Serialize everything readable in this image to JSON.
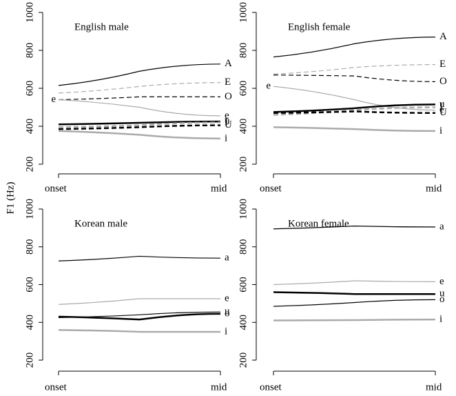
{
  "ylabel": "F1 (Hz)",
  "chart_data": [
    {
      "type": "line",
      "title": "English male",
      "categories": [
        "onset",
        null,
        "mid"
      ],
      "ylim": [
        200,
        1000
      ],
      "yticks": [
        200,
        400,
        600,
        800,
        1000
      ],
      "series": [
        {
          "name": "A",
          "color": "#000000",
          "width": 1.2,
          "dash": false,
          "values": [
            615,
            690,
            728
          ]
        },
        {
          "name": "E",
          "color": "#aaaaaa",
          "width": 1.2,
          "dash": true,
          "values": [
            575,
            610,
            630
          ]
        },
        {
          "name": "O",
          "color": "#000000",
          "width": 1.2,
          "dash": true,
          "values": [
            540,
            555,
            555
          ]
        },
        {
          "name": "e",
          "color": "#aaaaaa",
          "width": 1.2,
          "dash": false,
          "left_label": true,
          "values": [
            540,
            500,
            455
          ]
        },
        {
          "name": "u",
          "color": "#000000",
          "width": 2.5,
          "dash": false,
          "values": [
            410,
            418,
            425
          ]
        },
        {
          "name": "I",
          "color": "#aaaaaa",
          "width": 2.5,
          "dash": true,
          "values": [
            395,
            405,
            420
          ]
        },
        {
          "name": "U",
          "color": "#000000",
          "width": 2.5,
          "dash": true,
          "values": [
            385,
            395,
            405
          ]
        },
        {
          "name": "i",
          "color": "#aaaaaa",
          "width": 2.5,
          "dash": false,
          "values": [
            375,
            355,
            335
          ]
        }
      ]
    },
    {
      "type": "line",
      "title": "English female",
      "categories": [
        "onset",
        null,
        "mid"
      ],
      "ylim": [
        200,
        1000
      ],
      "yticks": [
        200,
        400,
        600,
        800,
        1000
      ],
      "series": [
        {
          "name": "A",
          "color": "#000000",
          "width": 1.2,
          "dash": false,
          "values": [
            765,
            835,
            870
          ]
        },
        {
          "name": "E",
          "color": "#aaaaaa",
          "width": 1.2,
          "dash": true,
          "values": [
            675,
            710,
            725
          ]
        },
        {
          "name": "O",
          "color": "#000000",
          "width": 1.2,
          "dash": true,
          "values": [
            670,
            665,
            635
          ]
        },
        {
          "name": "e",
          "color": "#aaaaaa",
          "width": 1.2,
          "dash": false,
          "left_label": true,
          "values": [
            610,
            540,
            485
          ]
        },
        {
          "name": "u",
          "color": "#000000",
          "width": 2.5,
          "dash": false,
          "values": [
            475,
            495,
            515
          ]
        },
        {
          "name": "I",
          "color": "#aaaaaa",
          "width": 2.5,
          "dash": true,
          "values": [
            460,
            485,
            500
          ]
        },
        {
          "name": "U",
          "color": "#000000",
          "width": 2.5,
          "dash": true,
          "values": [
            470,
            478,
            470
          ]
        },
        {
          "name": "i",
          "color": "#aaaaaa",
          "width": 2.5,
          "dash": false,
          "values": [
            395,
            385,
            375
          ]
        }
      ]
    },
    {
      "type": "line",
      "title": "Korean male",
      "categories": [
        "onset",
        null,
        "mid"
      ],
      "ylim": [
        200,
        1000
      ],
      "yticks": [
        200,
        400,
        600,
        800,
        1000
      ],
      "series": [
        {
          "name": "a",
          "color": "#000000",
          "width": 1.2,
          "dash": false,
          "values": [
            725,
            750,
            740
          ]
        },
        {
          "name": "e",
          "color": "#aaaaaa",
          "width": 1.2,
          "dash": false,
          "values": [
            495,
            525,
            525
          ]
        },
        {
          "name": "u",
          "color": "#000000",
          "width": 1.2,
          "dash": false,
          "values": [
            425,
            440,
            455
          ]
        },
        {
          "name": "o",
          "color": "#000000",
          "width": 2.5,
          "dash": false,
          "values": [
            430,
            415,
            445
          ]
        },
        {
          "name": "i",
          "color": "#aaaaaa",
          "width": 2.5,
          "dash": false,
          "values": [
            360,
            350,
            350
          ]
        }
      ]
    },
    {
      "type": "line",
      "title": "Korean female",
      "categories": [
        "onset",
        null,
        "mid"
      ],
      "ylim": [
        200,
        1000
      ],
      "yticks": [
        200,
        400,
        600,
        800,
        1000
      ],
      "series": [
        {
          "name": "a",
          "color": "#000000",
          "width": 1.2,
          "dash": false,
          "values": [
            895,
            910,
            905
          ]
        },
        {
          "name": "e",
          "color": "#aaaaaa",
          "width": 1.2,
          "dash": false,
          "values": [
            600,
            620,
            615
          ]
        },
        {
          "name": "u",
          "color": "#000000",
          "width": 2.5,
          "dash": false,
          "values": [
            560,
            550,
            550
          ]
        },
        {
          "name": "o",
          "color": "#000000",
          "width": 1.2,
          "dash": false,
          "values": [
            485,
            505,
            520
          ]
        },
        {
          "name": "i",
          "color": "#aaaaaa",
          "width": 2.5,
          "dash": false,
          "values": [
            410,
            412,
            415
          ]
        }
      ]
    }
  ]
}
